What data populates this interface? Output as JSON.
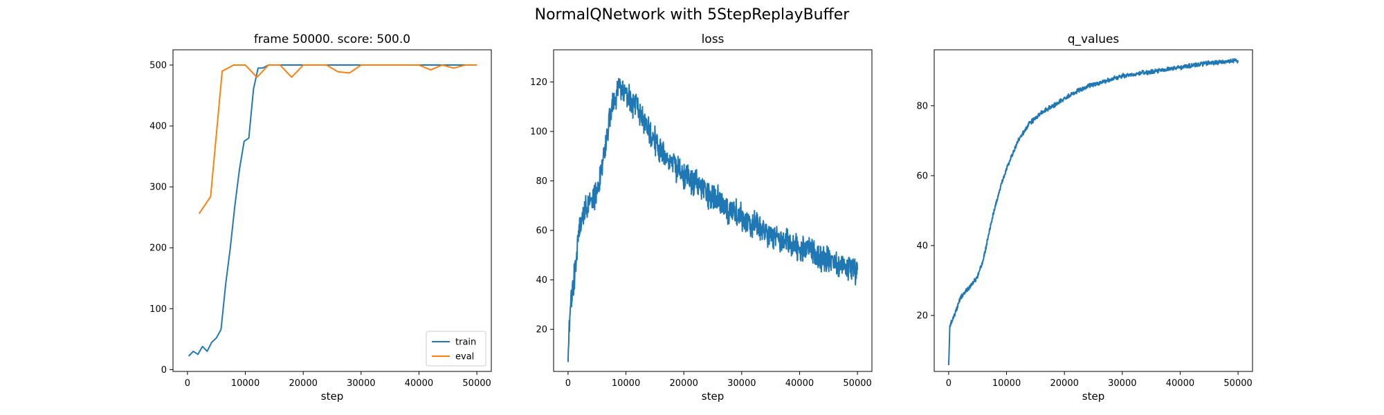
{
  "figure": {
    "suptitle": "NormalQNetwork with 5StepReplayBuffer"
  },
  "colors": {
    "blue": "#1f77b4",
    "orange": "#ff7f0e",
    "axis": "#000000",
    "legend_border": "#cccccc"
  },
  "chart_data": [
    {
      "type": "line",
      "title": "frame 50000. score: 500.0",
      "xlabel": "step",
      "ylabel": "",
      "xlim": [
        -2500,
        52500
      ],
      "ylim": [
        -3,
        525
      ],
      "xticks": [
        0,
        10000,
        20000,
        30000,
        40000,
        50000
      ],
      "yticks": [
        0,
        100,
        200,
        300,
        400,
        500
      ],
      "legend": {
        "position": "lower-right"
      },
      "series": [
        {
          "name": "train",
          "color_key": "blue",
          "x": [
            200,
            1000,
            1800,
            2600,
            3400,
            4200,
            5000,
            5800,
            6600,
            7400,
            8200,
            9000,
            9800,
            10600,
            11400,
            12200,
            13000,
            14000,
            20000,
            30000,
            40000,
            50000
          ],
          "y": [
            22,
            30,
            25,
            38,
            30,
            45,
            52,
            66,
            140,
            200,
            270,
            330,
            375,
            380,
            460,
            495,
            495,
            500,
            500,
            500,
            500,
            500
          ]
        },
        {
          "name": "eval",
          "color_key": "orange",
          "x": [
            2000,
            4000,
            6000,
            8000,
            10000,
            12000,
            14000,
            16000,
            18000,
            20000,
            22000,
            24000,
            26000,
            28000,
            30000,
            32000,
            34000,
            36000,
            38000,
            40000,
            42000,
            44000,
            46000,
            48000,
            50000
          ],
          "y": [
            256,
            284,
            490,
            500,
            500,
            480,
            500,
            500,
            480,
            500,
            500,
            500,
            489,
            487,
            500,
            500,
            500,
            500,
            500,
            500,
            492,
            500,
            495,
            500,
            500
          ]
        }
      ]
    },
    {
      "type": "line",
      "title": "loss",
      "xlabel": "step",
      "ylabel": "",
      "xlim": [
        -2500,
        52500
      ],
      "ylim": [
        3,
        133
      ],
      "xticks": [
        0,
        10000,
        20000,
        30000,
        40000,
        50000
      ],
      "yticks": [
        20,
        40,
        60,
        80,
        100,
        120
      ],
      "series": [
        {
          "name": "",
          "color_key": "blue",
          "noise": 4.5,
          "x": [
            0,
            300,
            1000,
            2000,
            3000,
            4000,
            5000,
            6000,
            7000,
            8000,
            9000,
            10000,
            12000,
            14000,
            16000,
            18000,
            20000,
            22000,
            24000,
            26000,
            28000,
            30000,
            32000,
            34000,
            36000,
            38000,
            40000,
            42000,
            44000,
            46000,
            48000,
            50000
          ],
          "y": [
            8,
            25,
            40,
            62,
            68,
            73,
            75,
            88,
            102,
            113,
            118,
            115,
            108,
            100,
            93,
            87,
            83,
            79,
            75,
            72,
            68,
            66,
            63,
            60,
            57,
            55,
            53,
            51,
            49,
            47,
            45,
            44
          ]
        }
      ]
    },
    {
      "type": "line",
      "title": "q_values",
      "xlabel": "step",
      "ylabel": "",
      "xlim": [
        -2500,
        52500
      ],
      "ylim": [
        4,
        96
      ],
      "xticks": [
        0,
        10000,
        20000,
        30000,
        40000,
        50000
      ],
      "yticks": [
        20,
        40,
        60,
        80
      ],
      "series": [
        {
          "name": "",
          "color_key": "blue",
          "noise": 0.5,
          "x": [
            0,
            200,
            1000,
            2000,
            3000,
            4000,
            5000,
            6000,
            7000,
            8000,
            9000,
            10000,
            12000,
            14000,
            16000,
            18000,
            20000,
            22000,
            24000,
            26000,
            28000,
            30000,
            32000,
            34000,
            36000,
            38000,
            40000,
            42000,
            44000,
            46000,
            48000,
            50000
          ],
          "y": [
            6,
            17,
            20,
            25,
            27,
            29,
            31,
            36,
            44,
            51,
            57,
            62,
            70,
            75,
            78,
            80,
            82,
            84,
            85.5,
            86.5,
            87.5,
            88.5,
            89,
            89.5,
            90,
            90.5,
            91,
            91.5,
            92,
            92.3,
            92.7,
            93
          ]
        }
      ]
    }
  ]
}
